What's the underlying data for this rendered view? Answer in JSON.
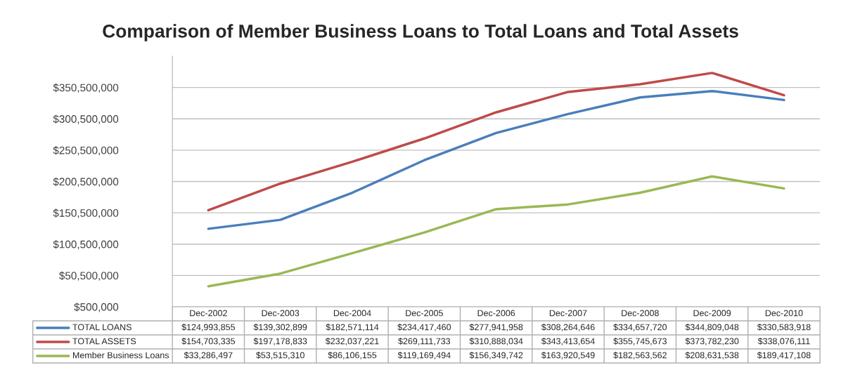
{
  "chart_data": {
    "type": "line",
    "title": "Comparison of Member Business Loans to Total Loans and Total Assets",
    "categories": [
      "Dec-2002",
      "Dec-2003",
      "Dec-2004",
      "Dec-2005",
      "Dec-2006",
      "Dec-2007",
      "Dec-2008",
      "Dec-2009",
      "Dec-2010"
    ],
    "series": [
      {
        "name": "TOTAL LOANS",
        "color": "#4a7ebb",
        "values": [
          124993855,
          139302899,
          182571114,
          234417460,
          277941958,
          308264646,
          334657720,
          344809048,
          330583918
        ],
        "value_labels": [
          "$124,993,855",
          "$139,302,899",
          "$182,571,114",
          "$234,417,460",
          "$277,941,958",
          "$308,264,646",
          "$334,657,720",
          "$344,809,048",
          "$330,583,918"
        ]
      },
      {
        "name": "TOTAL ASSETS",
        "color": "#be4b48",
        "values": [
          154703335,
          197178833,
          232037221,
          269111733,
          310888034,
          343413654,
          355745673,
          373782230,
          338076111
        ],
        "value_labels": [
          "$154,703,335",
          "$197,178,833",
          "$232,037,221",
          "$269,111,733",
          "$310,888,034",
          "$343,413,654",
          "$355,745,673",
          "$373,782,230",
          "$338,076,111"
        ]
      },
      {
        "name": "Member Business Loans",
        "color": "#98b954",
        "values": [
          33286497,
          53515310,
          86106155,
          119169494,
          156349742,
          163920549,
          182563562,
          208631538,
          189417108
        ],
        "value_labels": [
          "$33,286,497",
          "$53,515,310",
          "$86,106,155",
          "$119,169,494",
          "$156,349,742",
          "$163,920,549",
          "$182,563,562",
          "$208,631,538",
          "$189,417,108"
        ]
      }
    ],
    "ylim": [
      500000,
      400500000
    ],
    "yticks": [
      {
        "value": 500000,
        "label": "$500,000"
      },
      {
        "value": 50500000,
        "label": "$50,500,000"
      },
      {
        "value": 100500000,
        "label": "$100,500,000"
      },
      {
        "value": 150500000,
        "label": "$150,500,000"
      },
      {
        "value": 200500000,
        "label": "$200,500,000"
      },
      {
        "value": 250500000,
        "label": "$250,500,000"
      },
      {
        "value": 300500000,
        "label": "$300,500,000"
      },
      {
        "value": 350500000,
        "label": "$350,500,000"
      }
    ],
    "grid": "y",
    "legend": "bottom",
    "marker": "none",
    "line_style": "solid"
  }
}
